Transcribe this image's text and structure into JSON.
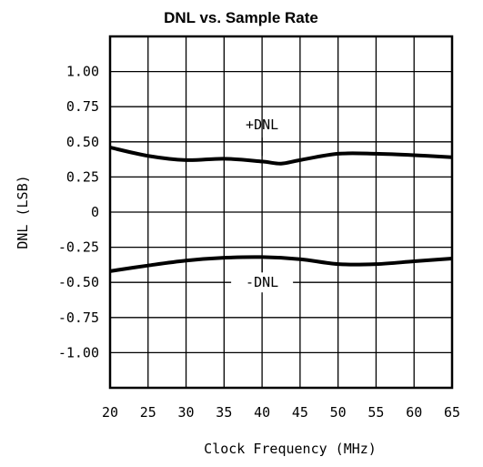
{
  "chart_data": {
    "type": "line",
    "title": "DNL vs. Sample Rate",
    "xlabel": "Clock Frequency (MHz)",
    "ylabel": "DNL (LSB)",
    "xlim": [
      20,
      65
    ],
    "ylim": [
      -1.25,
      1.25
    ],
    "x_ticks": [
      20,
      25,
      30,
      35,
      40,
      45,
      50,
      55,
      60,
      65
    ],
    "x_tick_labels": [
      "20",
      "25",
      "30",
      "35",
      "40",
      "45",
      "50",
      "55",
      "60",
      "65"
    ],
    "y_ticks": [
      1.0,
      0.75,
      0.5,
      0.25,
      0,
      -0.25,
      -0.5,
      -0.75,
      -1.0
    ],
    "y_tick_labels": [
      "1.00",
      "0.75",
      "0.50",
      "0.25",
      "0",
      "-0.25",
      "-0.50",
      "-0.75",
      "-1.00"
    ],
    "grid": true,
    "series": [
      {
        "name": "+DNL",
        "x": [
          20,
          25,
          30,
          35,
          40,
          42.5,
          45,
          50,
          55,
          60,
          65
        ],
        "y": [
          0.46,
          0.4,
          0.37,
          0.38,
          0.36,
          0.345,
          0.37,
          0.415,
          0.415,
          0.405,
          0.39
        ]
      },
      {
        "name": "-DNL",
        "x": [
          20,
          25,
          30,
          35,
          40,
          45,
          50,
          55,
          60,
          65
        ],
        "y": [
          -0.42,
          -0.38,
          -0.345,
          -0.325,
          -0.32,
          -0.335,
          -0.37,
          -0.37,
          -0.35,
          -0.33
        ]
      }
    ],
    "annotations": [
      "+DNL",
      "-DNL"
    ]
  }
}
